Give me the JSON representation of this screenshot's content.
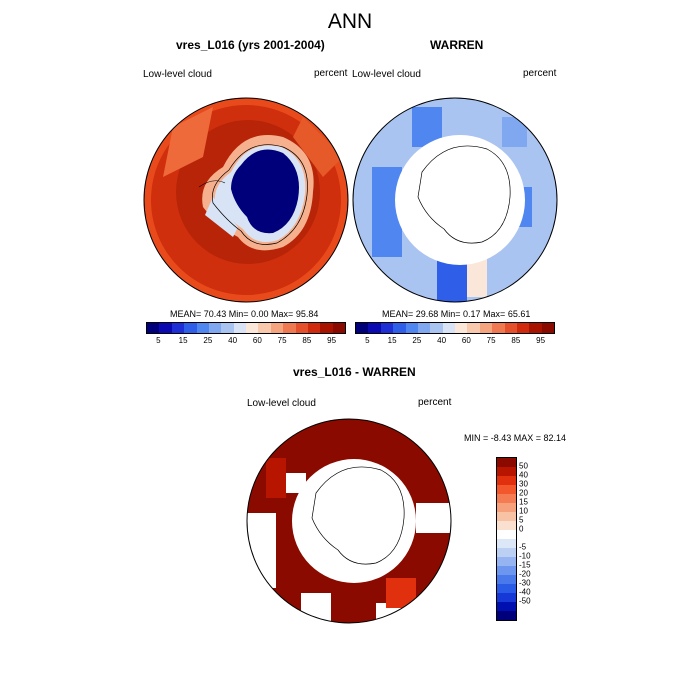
{
  "figure": {
    "title": "ANN",
    "panels": [
      {
        "title": "vres_L016 (yrs 2001-2004)",
        "left_label": "Low-level cloud",
        "right_label": "percent",
        "stats": "MEAN=  70.43  Min=   0.00  Max=  95.84"
      },
      {
        "title": "WARREN",
        "left_label": "Low-level cloud",
        "right_label": "percent",
        "stats": "MEAN=  29.68  Min=   0.17  Max=  65.61"
      },
      {
        "title": "vres_L016 - WARREN",
        "left_label": "Low-level cloud",
        "right_label": "percent",
        "stats": "MIN =  -8.43 MAX =  82.14"
      }
    ],
    "colorbar_top": {
      "colors": [
        "#00007a",
        "#0a0ab0",
        "#1e2fd6",
        "#2f5ee8",
        "#4f86f0",
        "#7fa8f0",
        "#aac4f2",
        "#d8e4f6",
        "#fbe6da",
        "#f8c9ad",
        "#f4a47e",
        "#ef7a52",
        "#e4502c",
        "#cf2a0e",
        "#a81300",
        "#8a0a00"
      ],
      "labels": [
        "5",
        "15",
        "25",
        "40",
        "60",
        "75",
        "85",
        "95"
      ]
    },
    "colorbar_diff": {
      "colors": [
        "#8a0a00",
        "#b81500",
        "#e0300e",
        "#f2582b",
        "#f47c53",
        "#f6a07c",
        "#f8c3a5",
        "#fae0cf",
        "#ffffff",
        "#dce7f8",
        "#bcd0f4",
        "#95b4f1",
        "#6d96ee",
        "#4a79ec",
        "#2a5be6",
        "#1538d6",
        "#0010b0",
        "#00007a"
      ],
      "labels": [
        "50",
        "40",
        "30",
        "20",
        "15",
        "10",
        "5",
        "0",
        "-5",
        "-10",
        "-15",
        "-20",
        "-30",
        "-40",
        "-50"
      ]
    }
  }
}
